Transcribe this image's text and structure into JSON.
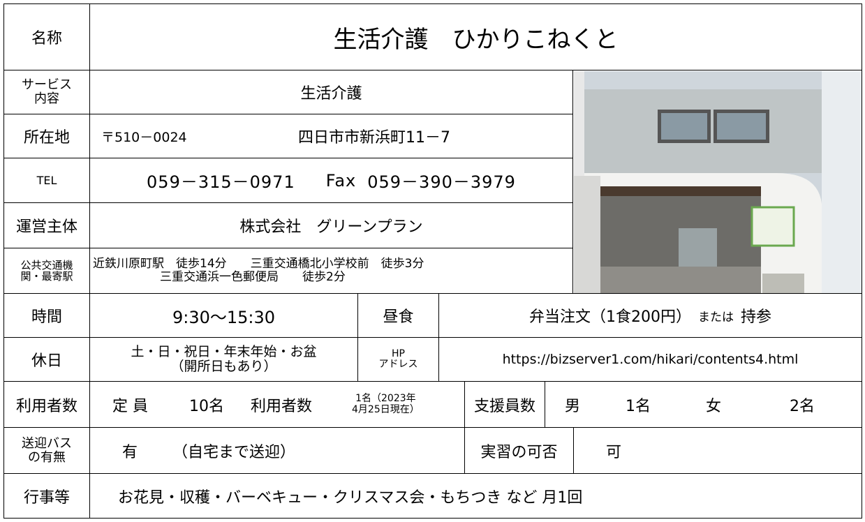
{
  "name": {
    "label": "名称",
    "value": "生活介護　ひかりこねくと"
  },
  "service": {
    "label": [
      "サービス",
      "内容"
    ],
    "value": "生活介護"
  },
  "address": {
    "label": "所在地",
    "postal": "〒510－0024",
    "value": "四日市市新浜町11－7"
  },
  "tel": {
    "label": "TEL",
    "tel": "059－315－0971",
    "fax_label": "Fax",
    "fax": "059－390－3979"
  },
  "operator": {
    "label": "運営主体",
    "value": "株式会社　グリーンプラン"
  },
  "access": {
    "label": [
      "公共交通機",
      "関・最寄駅"
    ],
    "lines": [
      "近鉄川原町駅　徒歩14分　　三重交通橋北小学校前　徒歩3分",
      "三重交通浜一色郵便局　　徒歩2分"
    ]
  },
  "hours": {
    "label": "時間",
    "value": "9:30～15:30",
    "lunch_label": "昼食",
    "lunch": "弁当注文（1食200円）",
    "lunch_or": "または",
    "lunch_alt": "持参"
  },
  "holiday": {
    "label": "休日",
    "lines": [
      "土・日・祝日・年末年始・お盆",
      "（開所日もあり）"
    ],
    "hp_label": [
      "HP",
      "アドレス"
    ],
    "hp": "https://bizserver1.com/hikari/contents4.html"
  },
  "users": {
    "label": "利用者数",
    "capacity_label": "定 員",
    "capacity": "10名",
    "users_label": "利用者数",
    "users": [
      "1名（2023年",
      "4月25日現在）"
    ],
    "staff_label": "支援員数",
    "male_label": "男",
    "male": "1名",
    "female_label": "女",
    "female": "2名"
  },
  "bus": {
    "label": [
      "送迎バス",
      "の有無"
    ],
    "value": "有",
    "note": "（自宅まで送迎）",
    "training_label": "実習の可否",
    "training": "可"
  },
  "events": {
    "label": "行事等",
    "value": "お花見・収穫・バーベキュー・クリスマス会・もちつき など 月1回"
  }
}
